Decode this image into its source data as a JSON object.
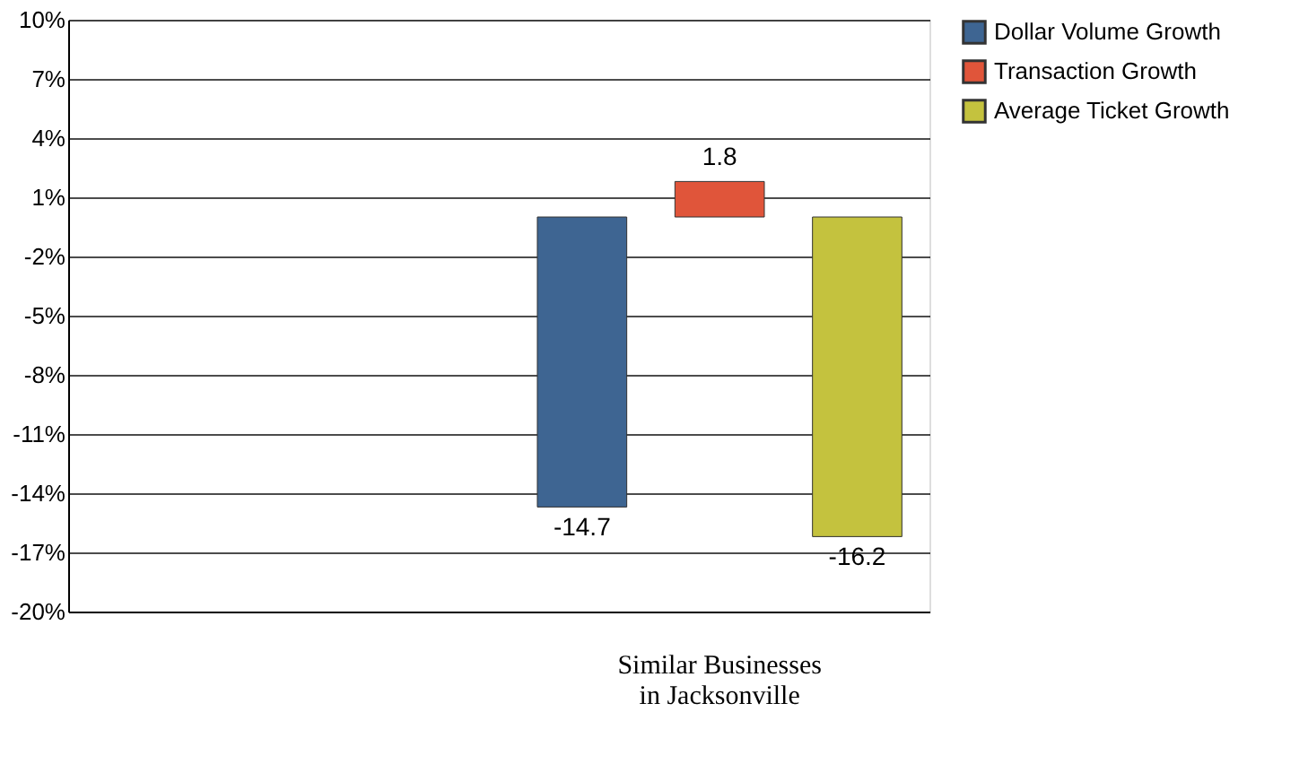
{
  "chart_data": {
    "type": "bar",
    "categories": [
      null,
      "Similar Businesses in Jacksonville"
    ],
    "series": [
      {
        "name": "Dollar Volume Growth",
        "color": "#3e6592",
        "values": [
          null,
          -14.7
        ]
      },
      {
        "name": "Transaction Growth",
        "color": "#e0553a",
        "values": [
          null,
          1.8
        ]
      },
      {
        "name": "Average Ticket Growth",
        "color": "#c4c23e",
        "values": [
          null,
          -16.2
        ]
      }
    ],
    "ylim": [
      -20,
      10
    ],
    "yticks": [
      {
        "value": 10,
        "label": "10%"
      },
      {
        "value": 7,
        "label": "7%"
      },
      {
        "value": 4,
        "label": "4%"
      },
      {
        "value": 1,
        "label": "1%"
      },
      {
        "value": -2,
        "label": "-2%"
      },
      {
        "value": -5,
        "label": "-5%"
      },
      {
        "value": -8,
        "label": "-8%"
      },
      {
        "value": -11,
        "label": "-11%"
      },
      {
        "value": -14,
        "label": "-14%"
      },
      {
        "value": -17,
        "label": "-17%"
      },
      {
        "value": -20,
        "label": "-20%"
      }
    ],
    "grid": "y",
    "legend": "right",
    "data_labels": true
  }
}
